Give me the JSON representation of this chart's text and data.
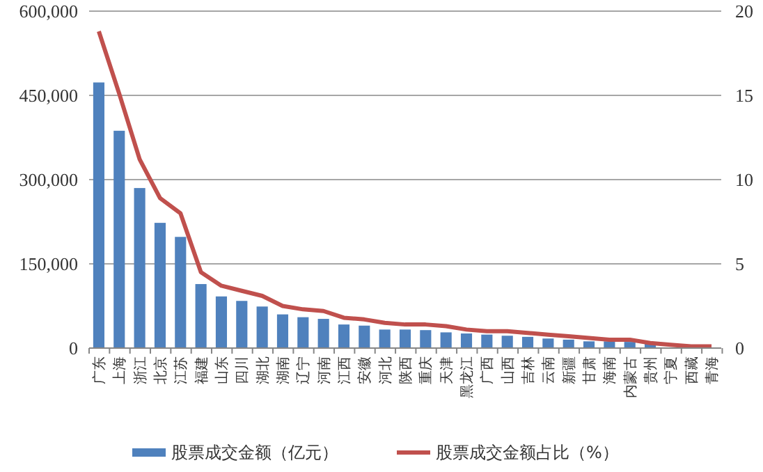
{
  "chart_data": {
    "type": "bar",
    "categories": [
      "广东",
      "上海",
      "浙江",
      "北京",
      "江苏",
      "福建",
      "山东",
      "四川",
      "湖北",
      "湖南",
      "辽宁",
      "河南",
      "江西",
      "安徽",
      "河北",
      "陕西",
      "重庆",
      "天津",
      "黑龙江",
      "广西",
      "山西",
      "吉林",
      "云南",
      "新疆",
      "甘肃",
      "海南",
      "内蒙古",
      "贵州",
      "宁夏",
      "西藏",
      "青海"
    ],
    "series": [
      {
        "name": "股票成交金额（亿元）",
        "color": "#4f81bd",
        "values": [
          473000,
          387000,
          285000,
          223000,
          198000,
          114000,
          92000,
          84000,
          74000,
          60000,
          55000,
          52000,
          42000,
          40000,
          33000,
          33000,
          32000,
          28000,
          26000,
          24000,
          22000,
          20000,
          17000,
          15000,
          12000,
          12000,
          11000,
          8000,
          null,
          null,
          null
        ]
      },
      {
        "name": "股票成交金额占比（%）",
        "type": "line",
        "axis": "y2",
        "color": "#c0504d",
        "values": [
          18.8,
          15.1,
          11.2,
          8.9,
          8.0,
          4.5,
          3.7,
          3.4,
          3.1,
          2.5,
          2.3,
          2.2,
          1.8,
          1.7,
          1.5,
          1.4,
          1.4,
          1.3,
          1.1,
          1.0,
          1.0,
          0.9,
          0.8,
          0.7,
          0.6,
          0.5,
          0.5,
          0.3,
          0.2,
          0.1,
          0.1
        ]
      }
    ],
    "ylim": [
      0,
      600000
    ],
    "yticks": [
      {
        "value": 0,
        "label": "0"
      },
      {
        "value": 150000,
        "label": "150,000"
      },
      {
        "value": 300000,
        "label": "300,000"
      },
      {
        "value": 450000,
        "label": "450,000"
      },
      {
        "value": 600000,
        "label": "600,000"
      }
    ],
    "y2lim": [
      0,
      20
    ],
    "y2ticks": [
      0,
      5,
      10,
      15,
      20
    ],
    "grid": "y",
    "legend": "bottom",
    "marker": "none",
    "line_style": "solid"
  }
}
